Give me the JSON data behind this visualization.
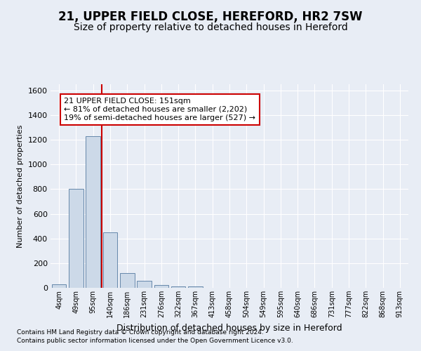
{
  "title1": "21, UPPER FIELD CLOSE, HEREFORD, HR2 7SW",
  "title2": "Size of property relative to detached houses in Hereford",
  "xlabel": "Distribution of detached houses by size in Hereford",
  "ylabel": "Number of detached properties",
  "categories": [
    "4sqm",
    "49sqm",
    "95sqm",
    "140sqm",
    "186sqm",
    "231sqm",
    "276sqm",
    "322sqm",
    "367sqm",
    "413sqm",
    "458sqm",
    "504sqm",
    "549sqm",
    "595sqm",
    "640sqm",
    "686sqm",
    "731sqm",
    "777sqm",
    "822sqm",
    "868sqm",
    "913sqm"
  ],
  "values": [
    30,
    800,
    1230,
    450,
    120,
    55,
    20,
    10,
    10,
    0,
    0,
    0,
    0,
    0,
    0,
    0,
    0,
    0,
    0,
    0,
    0
  ],
  "bar_color": "#ccd9e8",
  "bar_edge_color": "#6688aa",
  "vline_x": 3.0,
  "vline_color": "#cc0000",
  "annotation_text": "21 UPPER FIELD CLOSE: 151sqm\n← 81% of detached houses are smaller (2,202)\n19% of semi-detached houses are larger (527) →",
  "annotation_box_color": "#ffffff",
  "annotation_box_edge": "#cc0000",
  "ylim": [
    0,
    1650
  ],
  "yticks": [
    0,
    200,
    400,
    600,
    800,
    1000,
    1200,
    1400,
    1600
  ],
  "footer1": "Contains HM Land Registry data © Crown copyright and database right 2024.",
  "footer2": "Contains public sector information licensed under the Open Government Licence v3.0.",
  "background_color": "#e8edf5",
  "grid_color": "#ffffff",
  "title1_fontsize": 12,
  "title2_fontsize": 10,
  "ann_fontsize": 8.0
}
